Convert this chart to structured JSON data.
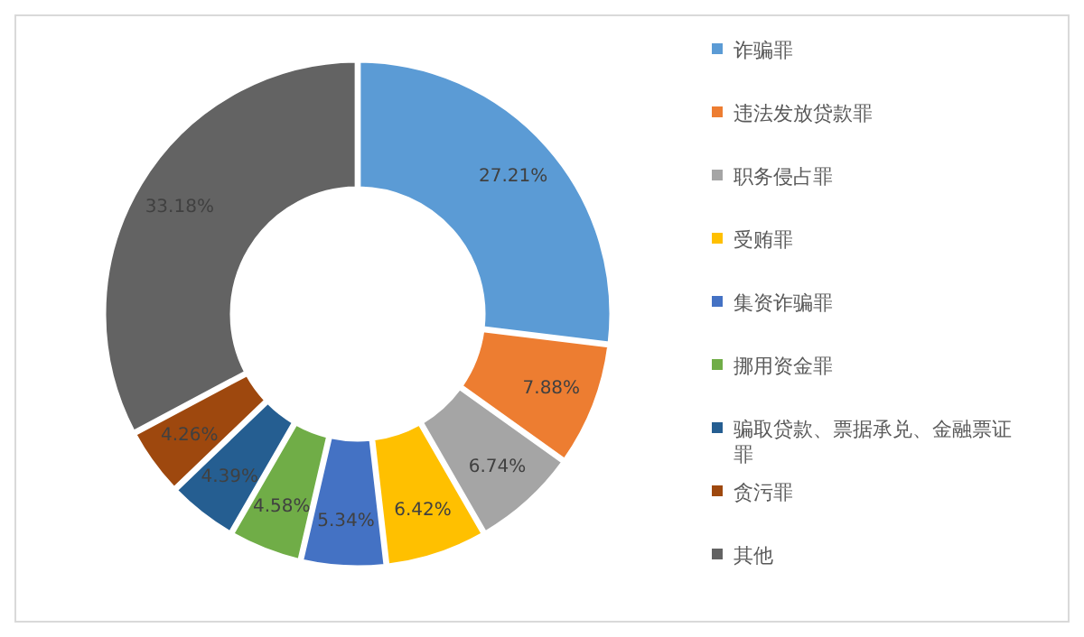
{
  "chart_data": {
    "type": "donut",
    "categories": [
      "诈骗罪",
      "违法发放贷款罪",
      "职务侵占罪",
      "受贿罪",
      "集资诈骗罪",
      "挪用资金罪",
      "骗取贷款、票据承兑、金融票证罪",
      "贪污罪",
      "其他"
    ],
    "values": [
      27.21,
      7.88,
      6.74,
      6.42,
      5.34,
      4.58,
      4.39,
      4.26,
      33.18
    ],
    "value_labels": [
      "27.21%",
      "7.88%",
      "6.74%",
      "6.42%",
      "5.34%",
      "4.58%",
      "4.39%",
      "4.26%",
      "33.18%"
    ],
    "colors": [
      "#5b9bd5",
      "#ed7d31",
      "#a5a5a5",
      "#ffc000",
      "#4472c4",
      "#70ad47",
      "#255e91",
      "#9e480e",
      "#636363"
    ],
    "legend": "right"
  }
}
